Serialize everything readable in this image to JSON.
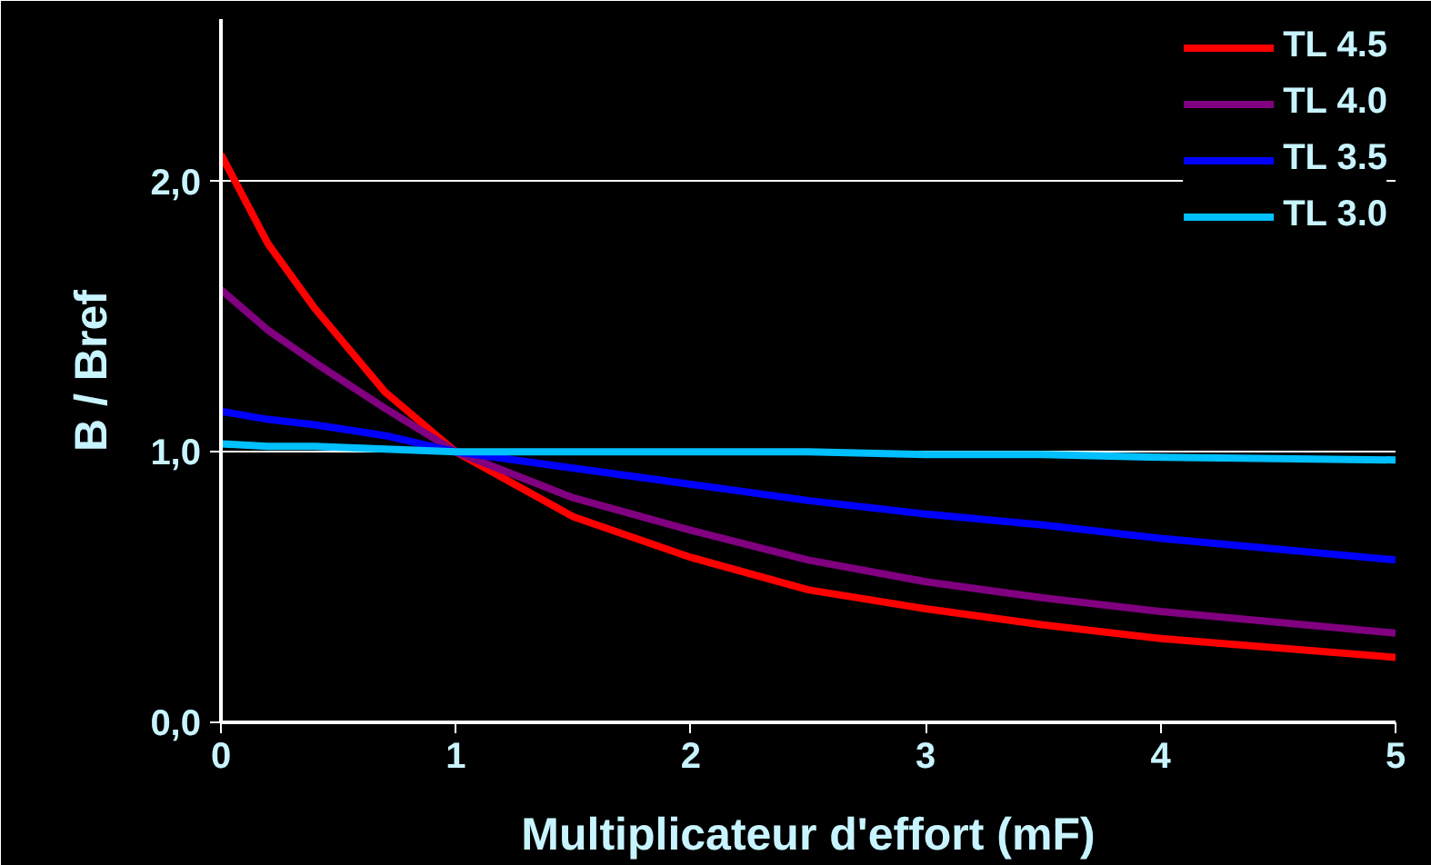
{
  "chart_data": {
    "type": "line",
    "xlabel": "Multiplicateur d'effort (mF)",
    "ylabel": "B / Bref",
    "x": [
      0,
      0.2,
      0.4,
      0.7,
      1,
      1.5,
      2,
      2.5,
      3,
      3.5,
      4,
      5
    ],
    "series": [
      {
        "name": "TL 4.5",
        "color": "#ff0000",
        "values": [
          2.1,
          1.77,
          1.53,
          1.22,
          1.0,
          0.76,
          0.61,
          0.49,
          0.42,
          0.36,
          0.31,
          0.24
        ]
      },
      {
        "name": "TL 4.0",
        "color": "#800080",
        "values": [
          1.6,
          1.45,
          1.33,
          1.16,
          1.0,
          0.83,
          0.71,
          0.6,
          0.52,
          0.46,
          0.41,
          0.33
        ]
      },
      {
        "name": "TL 3.5",
        "color": "#0000ff",
        "values": [
          1.15,
          1.12,
          1.1,
          1.06,
          1.0,
          0.94,
          0.88,
          0.82,
          0.77,
          0.73,
          0.68,
          0.6
        ]
      },
      {
        "name": "TL 3.0",
        "color": "#00c0ff",
        "values": [
          1.03,
          1.02,
          1.02,
          1.01,
          1.0,
          1.0,
          1.0,
          1.0,
          0.99,
          0.99,
          0.98,
          0.97
        ]
      }
    ],
    "xlim": [
      0,
      5
    ],
    "xticks": [
      0,
      1,
      2,
      3,
      4,
      5
    ],
    "ylim": [
      0,
      2.6
    ],
    "yticks": [
      {
        "value": 0,
        "label": "0,0"
      },
      {
        "value": 1,
        "label": "1,0"
      },
      {
        "value": 2,
        "label": "2,0"
      }
    ],
    "grid": "y",
    "legend": "top right",
    "marker": "none",
    "line_style": "solid"
  }
}
